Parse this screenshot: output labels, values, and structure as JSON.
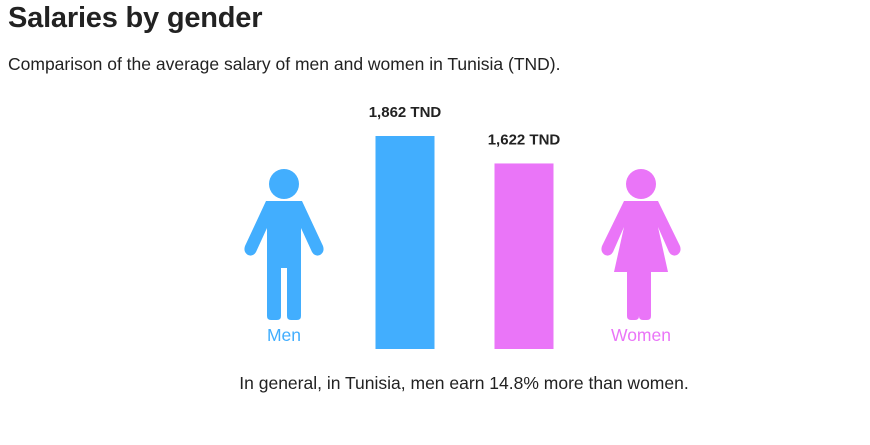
{
  "title": "Salaries by gender",
  "subtitle": "Comparison of the average salary of men and women in Tunisia (TND).",
  "caption": "In general, in Tunisia, men earn 14.8% more than women.",
  "colors": {
    "men": "#42aefe",
    "women": "#ea75f8"
  },
  "icons": {
    "men": "male-person-icon",
    "women": "female-person-icon"
  },
  "chart_data": {
    "type": "bar",
    "categories": [
      "Men",
      "Women"
    ],
    "values": [
      1862,
      1622
    ],
    "value_labels": [
      "1,862 TND",
      "1,622 TND"
    ],
    "unit": "TND",
    "title": "Salaries by gender",
    "subtitle": "Comparison of the average salary of men and women in Tunisia (TND).",
    "xlabel": "",
    "ylabel": "",
    "grid": false
  }
}
